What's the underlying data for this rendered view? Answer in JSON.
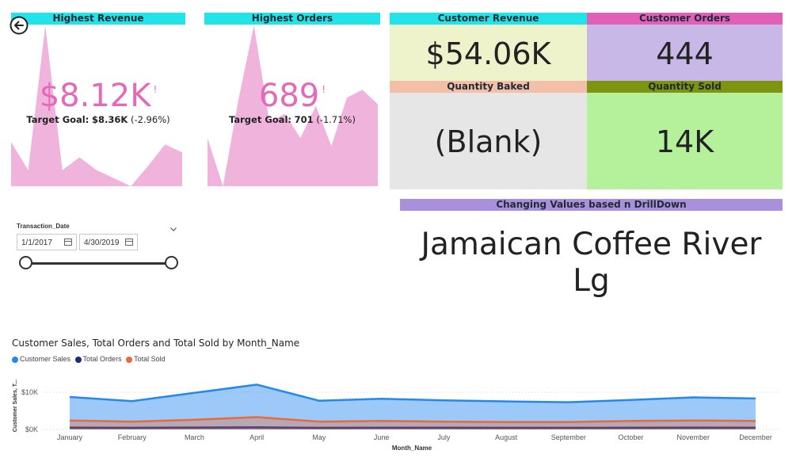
{
  "kpi_left": {
    "header": "Highest Revenue",
    "value": "$8.12K",
    "alert": "!",
    "target_label": "Target Goal:",
    "target_value": "$8.36K",
    "target_delta": "(-2.96%)",
    "area_values": [
      55,
      20,
      200,
      20,
      36,
      20,
      10,
      0,
      25,
      52,
      42
    ]
  },
  "kpi_mid": {
    "header": "Highest Orders",
    "value": "689",
    "alert": "!",
    "target_label": "Target Goal:",
    "target_value": "701",
    "target_delta": "(-1.71%)",
    "area_values": [
      60,
      0,
      108,
      200,
      80,
      90,
      60,
      100,
      50,
      110,
      120,
      102
    ]
  },
  "cards": {
    "customer_revenue": {
      "header": "Customer Revenue",
      "value": "$54.06K"
    },
    "customer_orders": {
      "header": "Customer Orders",
      "value": "444"
    },
    "quantity_baked": {
      "header": "Quantity Baked",
      "value": "(Blank)"
    },
    "quantity_sold": {
      "header": "Quantity Sold",
      "value": "14K"
    }
  },
  "drilldown": {
    "header": "Changing Values based n DrillDown",
    "line1": "Jamaican Coffee River",
    "line2": "Lg"
  },
  "slicer": {
    "title": "Transaction_Date",
    "start_date": "1/1/2017",
    "end_date": "4/30/2019"
  },
  "colors": {
    "cyan": "#22e4e8",
    "pink_header": "#e060b8",
    "lavender": "#c7b8e8",
    "cream": "#eef3cc",
    "salmon": "#f3bfa8",
    "olive": "#7c9410",
    "light_green": "#b5f09a",
    "light_gray": "#e6e6e6",
    "purple_bar": "#a990dc",
    "area_pink": "#f0b4dc",
    "kpi_pink": "#e36ab9",
    "sales_blue": "#2388f0",
    "orders_navy": "#1a2c7c",
    "sold_orange": "#e86a3c"
  },
  "chart_data": {
    "type": "area",
    "title": "Customer Sales, Total Orders and Total Sold by Month_Name",
    "xlabel": "Month_Name",
    "ylabel": "Customer Sales, T...",
    "categories": [
      "January",
      "February",
      "March",
      "April",
      "May",
      "June",
      "July",
      "August",
      "September",
      "October",
      "November",
      "December"
    ],
    "yticks": [
      "$0K",
      "$10K"
    ],
    "ylim": [
      0,
      14000
    ],
    "grid": true,
    "legend_position": "top-left",
    "series": [
      {
        "name": "Customer Sales",
        "values": [
          8700,
          7600,
          9800,
          12000,
          7700,
          8200,
          7800,
          7500,
          7300,
          7900,
          8600,
          8300
        ]
      },
      {
        "name": "Total Orders",
        "values": [
          500,
          450,
          520,
          600,
          450,
          480,
          470,
          450,
          440,
          460,
          500,
          490
        ]
      },
      {
        "name": "Total Sold",
        "values": [
          2400,
          2100,
          2600,
          3300,
          2100,
          2300,
          2100,
          2000,
          2000,
          2300,
          2400,
          2300
        ]
      }
    ]
  }
}
